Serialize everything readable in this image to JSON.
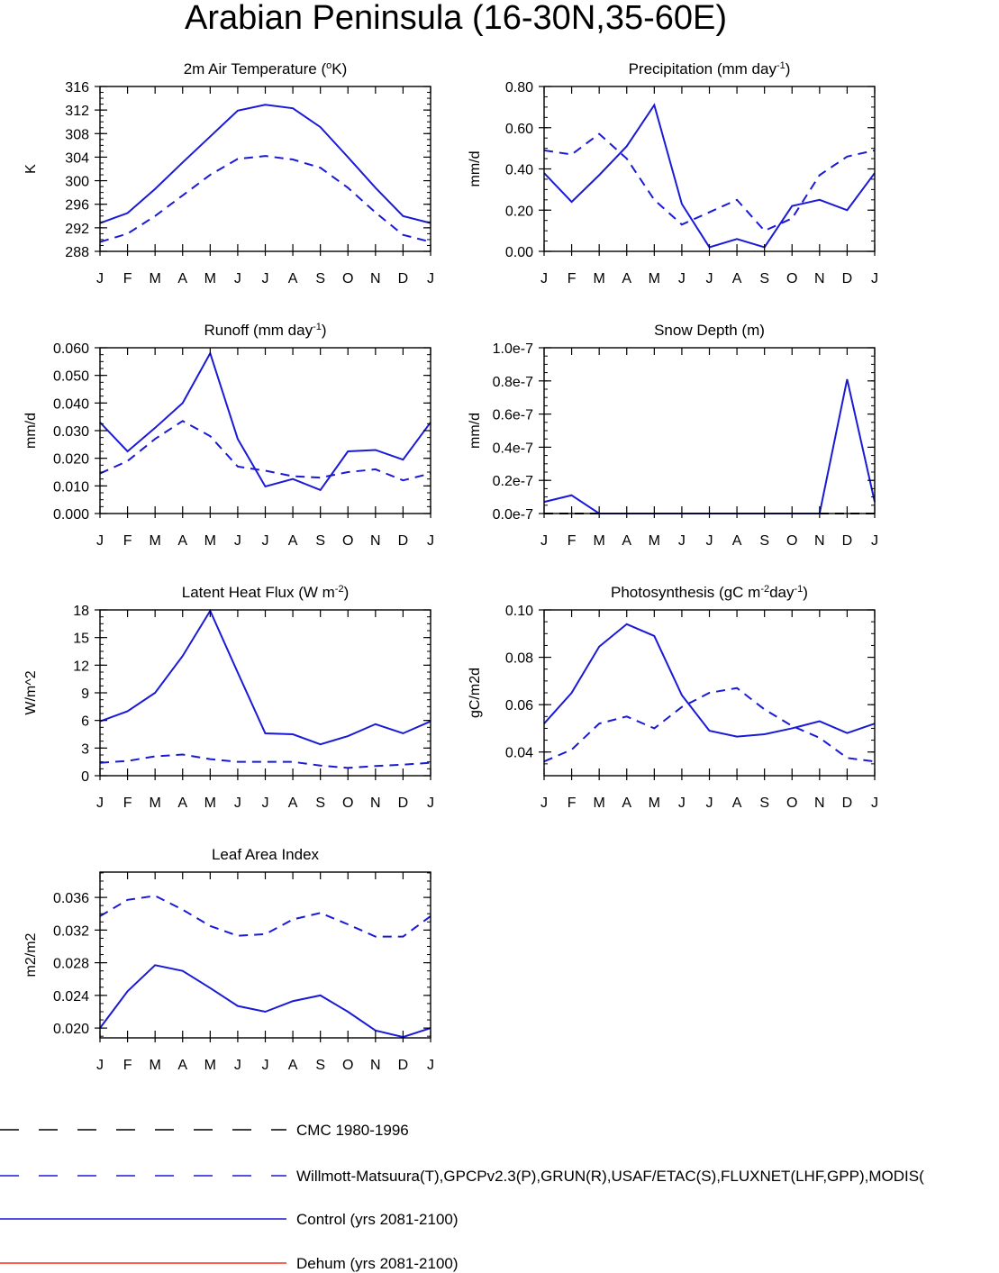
{
  "page_title": "Arabian Peninsula (16-30N,35-60E)",
  "month_labels": [
    "J",
    "F",
    "M",
    "A",
    "M",
    "J",
    "J",
    "A",
    "S",
    "O",
    "N",
    "D",
    "J"
  ],
  "colors": {
    "cmc": "#000000",
    "obs": "#1a1ad6",
    "control": "#1a1ad6",
    "dehum": "#ff2a1a"
  },
  "legend": [
    {
      "key": "cmc",
      "label": "CMC 1980-1996",
      "style": "dashed",
      "color": "#000000"
    },
    {
      "key": "obs",
      "label": "Willmott-Matsuura(T),GPCPv2.3(P),GRUN(R),USAF/ETAC(S),FLUXNET(LHF,GPP),MODIS(",
      "style": "dashed",
      "color": "#1a1ad6"
    },
    {
      "key": "control",
      "label": "Control (yrs 2081-2100)",
      "style": "solid",
      "color": "#1a1ad6"
    },
    {
      "key": "dehum",
      "label": "Dehum (yrs 2081-2100)",
      "style": "solid",
      "color": "#ff2a1a"
    }
  ],
  "chart_data": [
    {
      "id": "temperature",
      "type": "line",
      "title": "2m Air Temperature (",
      "title_sup": "o",
      "title_tail": "K)",
      "ylabel": "K",
      "ylim": [
        288,
        316
      ],
      "yticks": [
        288,
        292,
        296,
        300,
        304,
        308,
        312,
        316
      ],
      "ytick_labels": [
        "288",
        "292",
        "296",
        "300",
        "304",
        "308",
        "312",
        "316"
      ],
      "x": [
        "J",
        "F",
        "M",
        "A",
        "M",
        "J",
        "J",
        "A",
        "S",
        "O",
        "N",
        "D",
        "J"
      ],
      "series": [
        {
          "key": "obs",
          "style": "dashed",
          "values": [
            289.6,
            291.0,
            294.0,
            297.5,
            301.0,
            303.7,
            304.2,
            303.6,
            302.2,
            298.8,
            294.6,
            290.8,
            289.6
          ]
        },
        {
          "key": "control",
          "style": "solid",
          "values": [
            292.8,
            294.5,
            298.6,
            303.1,
            307.5,
            311.9,
            312.9,
            312.3,
            309.1,
            304.0,
            298.8,
            294.0,
            292.8
          ]
        }
      ]
    },
    {
      "id": "precipitation",
      "type": "line",
      "title": "Precipitation (mm day",
      "title_sup": "-1",
      "title_tail": ")",
      "ylabel": "mm/d",
      "ylim": [
        0,
        0.8
      ],
      "yticks": [
        0,
        0.2,
        0.4,
        0.6,
        0.8
      ],
      "ytick_labels": [
        "0.00",
        "0.20",
        "0.40",
        "0.60",
        "0.80"
      ],
      "x": [
        "J",
        "F",
        "M",
        "A",
        "M",
        "J",
        "J",
        "A",
        "S",
        "O",
        "N",
        "D",
        "J"
      ],
      "series": [
        {
          "key": "obs",
          "style": "dashed",
          "values": [
            0.49,
            0.47,
            0.57,
            0.45,
            0.25,
            0.13,
            0.19,
            0.25,
            0.1,
            0.16,
            0.37,
            0.46,
            0.49
          ]
        },
        {
          "key": "control",
          "style": "solid",
          "values": [
            0.38,
            0.24,
            0.37,
            0.51,
            0.71,
            0.23,
            0.02,
            0.06,
            0.02,
            0.22,
            0.25,
            0.2,
            0.38
          ]
        }
      ]
    },
    {
      "id": "runoff",
      "type": "line",
      "title": "Runoff (mm day",
      "title_sup": "-1",
      "title_tail": ")",
      "ylabel": "mm/d",
      "ylim": [
        0,
        0.06
      ],
      "yticks": [
        0,
        0.01,
        0.02,
        0.03,
        0.04,
        0.05,
        0.06
      ],
      "ytick_labels": [
        "0.000",
        "0.010",
        "0.020",
        "0.030",
        "0.040",
        "0.050",
        "0.060"
      ],
      "x": [
        "J",
        "F",
        "M",
        "A",
        "M",
        "J",
        "J",
        "A",
        "S",
        "O",
        "N",
        "D",
        "J"
      ],
      "series": [
        {
          "key": "obs",
          "style": "dashed",
          "values": [
            0.0145,
            0.019,
            0.027,
            0.0335,
            0.028,
            0.017,
            0.0155,
            0.0135,
            0.013,
            0.015,
            0.016,
            0.012,
            0.0145
          ]
        },
        {
          "key": "control",
          "style": "solid",
          "values": [
            0.033,
            0.0225,
            0.031,
            0.04,
            0.058,
            0.027,
            0.0098,
            0.0125,
            0.0085,
            0.0225,
            0.023,
            0.0195,
            0.033
          ]
        }
      ]
    },
    {
      "id": "snow",
      "type": "line",
      "title": "Snow Depth (m)",
      "title_sup": "",
      "title_tail": "",
      "ylabel": "mm/d",
      "ylim": [
        0,
        1e-07
      ],
      "yticks": [
        0,
        2e-08,
        4e-08,
        6e-08,
        8e-08,
        1e-07
      ],
      "ytick_labels": [
        "0.0e-7",
        "0.2e-7",
        "0.4e-7",
        "0.6e-7",
        "0.8e-7",
        "1.0e-7"
      ],
      "x": [
        "J",
        "F",
        "M",
        "A",
        "M",
        "J",
        "J",
        "A",
        "S",
        "O",
        "N",
        "D",
        "J"
      ],
      "series": [
        {
          "key": "cmc",
          "style": "dashed",
          "values": [
            0.0,
            0,
            0,
            0,
            0,
            0,
            0,
            0,
            0,
            0,
            0,
            0,
            0
          ]
        },
        {
          "key": "control",
          "style": "solid",
          "values": [
            7e-09,
            1.1e-08,
            0,
            0,
            0,
            0,
            0,
            0,
            0,
            0,
            0,
            8.1e-08,
            7e-09
          ]
        }
      ]
    },
    {
      "id": "lhf",
      "type": "line",
      "title": "Latent Heat Flux (W m",
      "title_sup": "-2",
      "title_tail": ")",
      "ylabel": "W/m^2",
      "ylim": [
        0,
        18
      ],
      "yticks": [
        0,
        3,
        6,
        9,
        12,
        15,
        18
      ],
      "ytick_labels": [
        "0",
        "3",
        "6",
        "9",
        "12",
        "15",
        "18"
      ],
      "x": [
        "J",
        "F",
        "M",
        "A",
        "M",
        "J",
        "J",
        "A",
        "S",
        "O",
        "N",
        "D",
        "J"
      ],
      "series": [
        {
          "key": "obs",
          "style": "dashed",
          "values": [
            1.4,
            1.6,
            2.1,
            2.3,
            1.8,
            1.5,
            1.5,
            1.5,
            1.1,
            0.85,
            1.05,
            1.2,
            1.4
          ]
        },
        {
          "key": "control",
          "style": "solid",
          "values": [
            5.9,
            7.0,
            9.0,
            13.0,
            17.9,
            11.2,
            4.6,
            4.5,
            3.4,
            4.3,
            5.6,
            4.6,
            5.9
          ]
        }
      ]
    },
    {
      "id": "gpp",
      "type": "line",
      "title": "Photosynthesis (gC m",
      "title_sup": "-2",
      "title_tail": "day",
      "title_sup2": "-1",
      "title_tail2": ")",
      "ylabel": "gC/m2d",
      "ylim": [
        0.03,
        0.1
      ],
      "yticks": [
        0.04,
        0.06,
        0.08,
        0.1
      ],
      "ytick_labels": [
        "0.04",
        "0.06",
        "0.08",
        "0.10"
      ],
      "x": [
        "J",
        "F",
        "M",
        "A",
        "M",
        "J",
        "J",
        "A",
        "S",
        "O",
        "N",
        "D",
        "J"
      ],
      "series": [
        {
          "key": "obs",
          "style": "dashed",
          "values": [
            0.036,
            0.041,
            0.052,
            0.055,
            0.05,
            0.059,
            0.065,
            0.067,
            0.058,
            0.051,
            0.046,
            0.0375,
            0.036
          ]
        },
        {
          "key": "control",
          "style": "solid",
          "values": [
            0.052,
            0.065,
            0.0845,
            0.094,
            0.089,
            0.064,
            0.049,
            0.0465,
            0.0475,
            0.05,
            0.053,
            0.048,
            0.052
          ]
        }
      ]
    },
    {
      "id": "lai",
      "type": "line",
      "title": "Leaf Area Index",
      "title_sup": "",
      "title_tail": "",
      "ylabel": "m2/m2",
      "ylim": [
        0.0188,
        0.0391
      ],
      "yticks": [
        0.02,
        0.024,
        0.028,
        0.032,
        0.036
      ],
      "ytick_labels": [
        "0.020",
        "0.024",
        "0.028",
        "0.032",
        "0.036"
      ],
      "x": [
        "J",
        "F",
        "M",
        "A",
        "M",
        "J",
        "J",
        "A",
        "S",
        "O",
        "N",
        "D",
        "J"
      ],
      "series": [
        {
          "key": "obs",
          "style": "dashed",
          "values": [
            0.0337,
            0.0357,
            0.0362,
            0.0345,
            0.0325,
            0.0313,
            0.0315,
            0.0333,
            0.0341,
            0.0327,
            0.0312,
            0.0312,
            0.0337
          ]
        },
        {
          "key": "control",
          "style": "solid",
          "values": [
            0.02,
            0.0245,
            0.0277,
            0.027,
            0.0249,
            0.0227,
            0.022,
            0.0233,
            0.024,
            0.022,
            0.0197,
            0.0189,
            0.02
          ]
        }
      ]
    }
  ]
}
